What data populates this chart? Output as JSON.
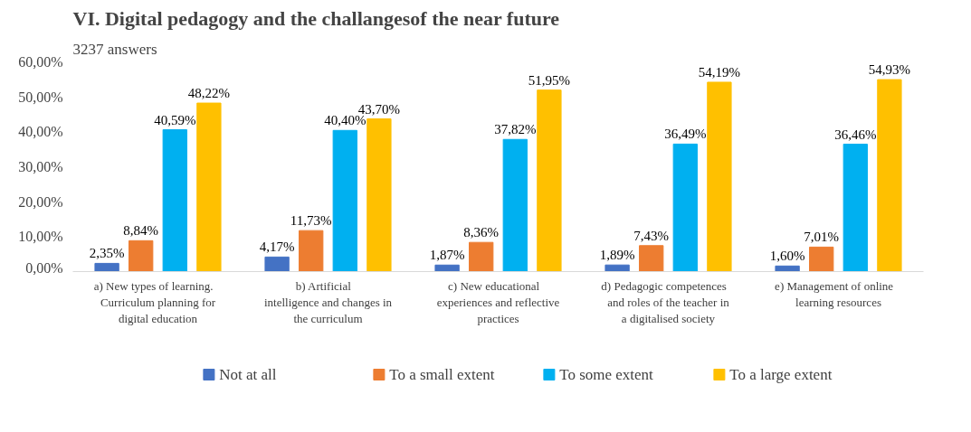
{
  "chart_data": {
    "type": "bar",
    "title": "VI. Digital pedagogy and the challangesof the near future",
    "subtitle": "3237 answers",
    "categories": [
      "a)\tNew types of learning. Curriculum planning for digital education",
      "b)\tArtificial intelligence and changes in the curriculum",
      "c)\tNew educational experiences and reflective practices",
      "d)\tPedagogic competences and roles of the teacher in a digitalised society",
      "e)\tManagement of online learning resources"
    ],
    "series": [
      {
        "name": "Not at all",
        "color": "#4472c4",
        "values": [
          2.35,
          4.17,
          1.87,
          1.89,
          1.6
        ],
        "value_labels": [
          "2,35%",
          "4,17%",
          "1,87%",
          "1,89%",
          "1,60%"
        ]
      },
      {
        "name": "To a small extent",
        "color": "#ed7d31",
        "values": [
          8.84,
          11.73,
          8.36,
          7.43,
          7.01
        ],
        "value_labels": [
          "8,84%",
          "11,73%",
          "8,36%",
          "7,43%",
          "7,01%"
        ]
      },
      {
        "name": "To some extent",
        "color": "#00b0f0",
        "values": [
          40.59,
          40.4,
          37.82,
          36.49,
          36.46
        ],
        "value_labels": [
          "40,59%",
          "40,40%",
          "37,82%",
          "36,49%",
          "36,46%"
        ]
      },
      {
        "name": "To a large extent",
        "color": "#ffc000",
        "values": [
          48.22,
          43.7,
          51.95,
          54.19,
          54.93
        ],
        "value_labels": [
          "48,22%",
          "43,70%",
          "51,95%",
          "54,19%",
          "54,93%"
        ]
      }
    ],
    "ylim": [
      0,
      60
    ],
    "yticks": [
      {
        "value": 0,
        "label": "0,00%"
      },
      {
        "value": 10,
        "label": "10,00%"
      },
      {
        "value": 20,
        "label": "20,00%"
      },
      {
        "value": 30,
        "label": "30,00%"
      },
      {
        "value": 40,
        "label": "40,00%"
      },
      {
        "value": 50,
        "label": "50,00%"
      },
      {
        "value": 60,
        "label": "60,00%"
      }
    ],
    "grid": false,
    "legend": "bottom"
  }
}
